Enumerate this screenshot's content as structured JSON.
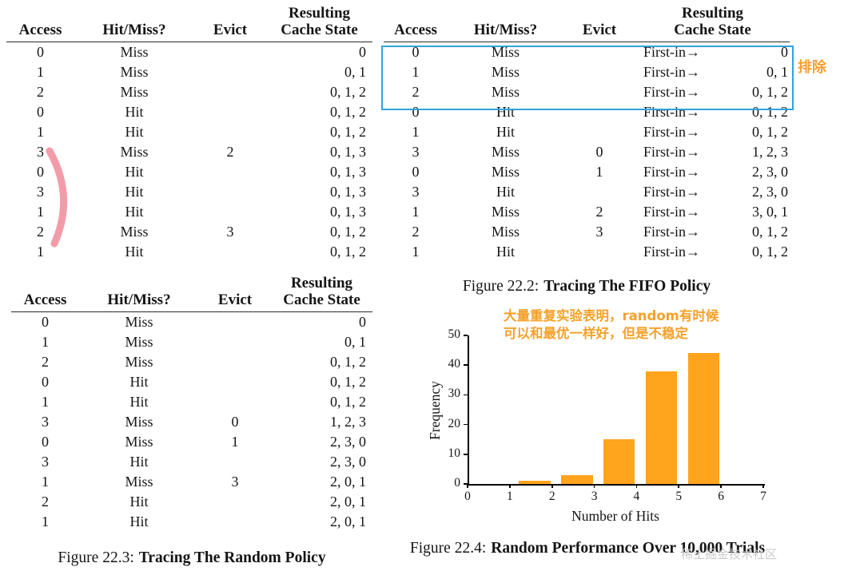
{
  "colors": {
    "bar_orange": "#FFA41C",
    "highlight_blue": "#2FA3DB",
    "annotation_orange": "#F5A12B",
    "arc_pink": "#F08B9B",
    "watermark_gray": "#C6C6C6"
  },
  "optimal_table": {
    "headers": {
      "access": "Access",
      "hitmiss": "Hit/Miss?",
      "evict": "Evict",
      "resulting": "Resulting",
      "cache_state": "Cache State"
    },
    "rows": [
      [
        "0",
        "Miss",
        "",
        "0"
      ],
      [
        "1",
        "Miss",
        "",
        "0, 1"
      ],
      [
        "2",
        "Miss",
        "",
        "0, 1, 2"
      ],
      [
        "0",
        "Hit",
        "",
        "0, 1, 2"
      ],
      [
        "1",
        "Hit",
        "",
        "0, 1, 2"
      ],
      [
        "3",
        "Miss",
        "2",
        "0, 1, 3"
      ],
      [
        "0",
        "Hit",
        "",
        "0, 1, 3"
      ],
      [
        "3",
        "Hit",
        "",
        "0, 1, 3"
      ],
      [
        "1",
        "Hit",
        "",
        "0, 1, 3"
      ],
      [
        "2",
        "Miss",
        "3",
        "0, 1, 2"
      ],
      [
        "1",
        "Hit",
        "",
        "0, 1, 2"
      ]
    ]
  },
  "fifo_table": {
    "headers": {
      "access": "Access",
      "hitmiss": "Hit/Miss?",
      "evict": "Evict",
      "resulting": "Resulting",
      "cache_state": "Cache State"
    },
    "first_in": "First-in→",
    "rows": [
      [
        "0",
        "Miss",
        "",
        "0"
      ],
      [
        "1",
        "Miss",
        "",
        "0, 1"
      ],
      [
        "2",
        "Miss",
        "",
        "0, 1, 2"
      ],
      [
        "0",
        "Hit",
        "",
        "0, 1, 2"
      ],
      [
        "1",
        "Hit",
        "",
        "0, 1, 2"
      ],
      [
        "3",
        "Miss",
        "0",
        "1, 2, 3"
      ],
      [
        "0",
        "Miss",
        "1",
        "2, 3, 0"
      ],
      [
        "3",
        "Hit",
        "",
        "2, 3, 0"
      ],
      [
        "1",
        "Miss",
        "2",
        "3, 0, 1"
      ],
      [
        "2",
        "Miss",
        "3",
        "0, 1, 2"
      ],
      [
        "1",
        "Hit",
        "",
        "0, 1, 2"
      ]
    ]
  },
  "random_table": {
    "headers": {
      "access": "Access",
      "hitmiss": "Hit/Miss?",
      "evict": "Evict",
      "resulting": "Resulting",
      "cache_state": "Cache State"
    },
    "rows": [
      [
        "0",
        "Miss",
        "",
        "0"
      ],
      [
        "1",
        "Miss",
        "",
        "0, 1"
      ],
      [
        "2",
        "Miss",
        "",
        "0, 1, 2"
      ],
      [
        "0",
        "Hit",
        "",
        "0, 1, 2"
      ],
      [
        "1",
        "Hit",
        "",
        "0, 1, 2"
      ],
      [
        "3",
        "Miss",
        "0",
        "1, 2, 3"
      ],
      [
        "0",
        "Miss",
        "1",
        "2, 3, 0"
      ],
      [
        "3",
        "Hit",
        "",
        "2, 3, 0"
      ],
      [
        "1",
        "Miss",
        "3",
        "2, 0, 1"
      ],
      [
        "2",
        "Hit",
        "",
        "2, 0, 1"
      ],
      [
        "1",
        "Hit",
        "",
        "2, 0, 1"
      ]
    ]
  },
  "captions": {
    "fifo": {
      "prefix": "Figure 22.2:",
      "title": "Tracing The FIFO Policy"
    },
    "random": {
      "prefix": "Figure 22.3:",
      "title": "Tracing The Random Policy"
    },
    "chart": {
      "prefix": "Figure 22.4:",
      "title": "Random Performance Over 10,000 Trials"
    }
  },
  "annotations": {
    "exclude_note": "排除",
    "chart_note_line1": "大量重复实验表明，random有时候",
    "chart_note_line2": "可以和最优一样好，但是不稳定"
  },
  "watermark": "稀土掘金技术社区",
  "chart_data": {
    "type": "bar",
    "title": "",
    "x": [
      2,
      3,
      4,
      5,
      6
    ],
    "values": [
      1,
      3,
      15,
      38,
      44
    ],
    "xlabel": "Number of Hits",
    "ylabel": "Frequency",
    "xticks": [
      0,
      1,
      2,
      3,
      4,
      5,
      6,
      7
    ],
    "yticks": [
      0,
      10,
      20,
      30,
      40,
      50
    ],
    "xlim": [
      0,
      7
    ],
    "ylim": [
      0,
      50
    ],
    "bar_color": "#FFA41C",
    "grid": false,
    "legend": "none"
  }
}
